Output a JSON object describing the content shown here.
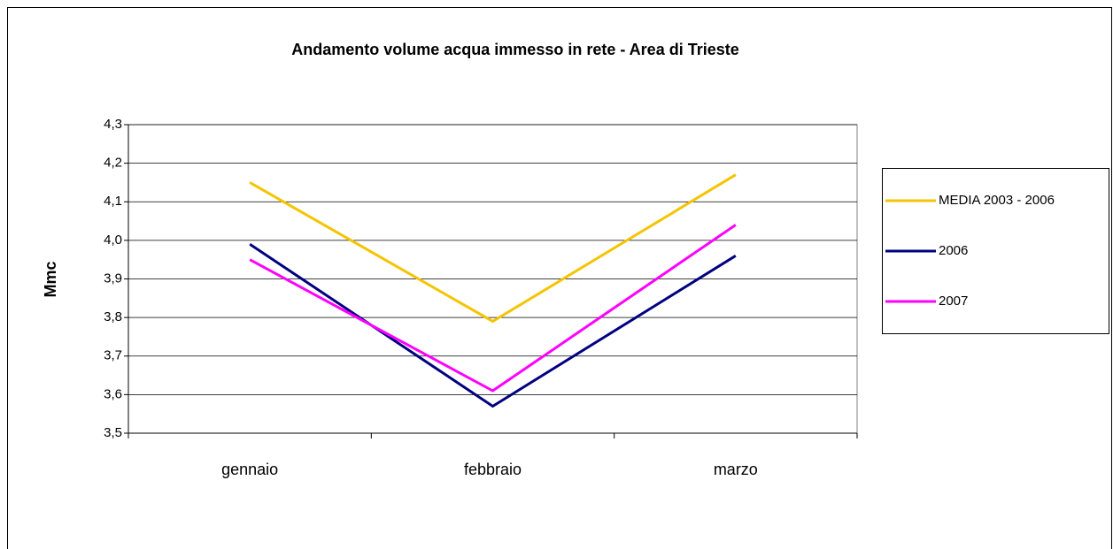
{
  "chart_data": {
    "type": "line",
    "title": "Andamento volume acqua immesso in rete - Area di Trieste",
    "y_label": "Mmc",
    "categories": [
      "gennaio",
      "febbraio",
      "marzo"
    ],
    "series": [
      {
        "name": "MEDIA 2003 - 2006",
        "color": "#f5c400",
        "values": [
          4.15,
          3.79,
          4.17
        ]
      },
      {
        "name": "2006",
        "color": "#000080",
        "values": [
          3.99,
          3.57,
          3.96
        ]
      },
      {
        "name": "2007",
        "color": "#ff00ff",
        "values": [
          3.95,
          3.61,
          4.04
        ]
      }
    ],
    "ylim": [
      3.5,
      4.3
    ],
    "yticks": [
      {
        "value": 3.5,
        "label": "3,5"
      },
      {
        "value": 3.6,
        "label": "3,6"
      },
      {
        "value": 3.7,
        "label": "3,7"
      },
      {
        "value": 3.8,
        "label": "3,8"
      },
      {
        "value": 3.9,
        "label": "3,9"
      },
      {
        "value": 4.0,
        "label": "4,0"
      },
      {
        "value": 4.1,
        "label": "4,1"
      },
      {
        "value": 4.2,
        "label": "4,2"
      },
      {
        "value": 4.3,
        "label": "4,3"
      }
    ],
    "grid": true,
    "legend": "right"
  }
}
